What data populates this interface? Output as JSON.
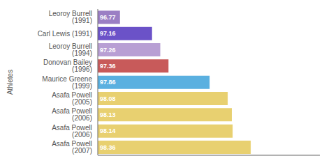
{
  "chart_data": {
    "type": "bar",
    "orientation": "horizontal",
    "categories": [
      "Leoroy Burrell (1991)",
      "Carl Lewis (1991)",
      "Leoroy Burrell (1994)",
      "Donovan Bailey (1996)",
      "Maurice Greene (1999)",
      "Asafa Powell (2005)",
      "Asafa Powell (2006)",
      "Asafa Powell (2006)",
      "Asafa Powell (2007)"
    ],
    "values": [
      96.77,
      97.16,
      97.26,
      97.36,
      97.86,
      98.08,
      98.13,
      98.14,
      98.36
    ],
    "colors": [
      "#9b7fc4",
      "#6b52c8",
      "#b89fd4",
      "#c85a5a",
      "#5ab0e0",
      "#e8d070",
      "#e8d070",
      "#e8d070",
      "#e8d070"
    ],
    "ylabel": "Athletes",
    "xlim": [
      96.5,
      99.2
    ],
    "data_labels": true,
    "tick_labels": "y",
    "grid": false
  }
}
